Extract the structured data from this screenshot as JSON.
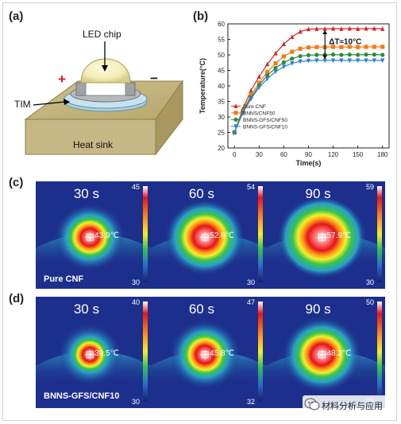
{
  "panel_a": {
    "label": "(a)",
    "led_chip": "LED chip",
    "plus": "+",
    "minus": "−",
    "tim": "TIM",
    "heat_sink": "Heat sink"
  },
  "panel_b": {
    "label": "(b)",
    "delta_t": "ΔT≈10°C"
  },
  "chart_data": {
    "type": "line",
    "title": "",
    "xlabel": "Time(s)",
    "ylabel": "Temperature(°C)",
    "xlim": [
      -8,
      188
    ],
    "ylim": [
      20,
      60
    ],
    "xticks": [
      "0",
      "30",
      "60",
      "90",
      "120",
      "150",
      "180"
    ],
    "yticks": [
      "20",
      "25",
      "30",
      "35",
      "40",
      "45",
      "50",
      "55",
      "60"
    ],
    "x": [
      0,
      10,
      20,
      30,
      40,
      50,
      60,
      70,
      80,
      90,
      100,
      110,
      120,
      130,
      140,
      150,
      160,
      170,
      180
    ],
    "series": [
      {
        "name": "Pure CNF",
        "color": "#d62728",
        "marker": "triangle-up",
        "values": [
          25,
          32.5,
          38.5,
          43,
          47,
          50.5,
          53.5,
          55.8,
          57.5,
          58.3,
          58.4,
          58.4,
          58.5,
          58.4,
          58.5,
          58.4,
          58.5,
          58.5,
          58.4
        ]
      },
      {
        "name": "BNNS/CNF50",
        "color": "#ef7d1a",
        "marker": "square",
        "values": [
          25,
          31.8,
          37,
          41,
          44.5,
          47.3,
          49.5,
          51,
          52,
          52.4,
          52.5,
          52.5,
          52.6,
          52.5,
          52.6,
          52.5,
          52.6,
          52.6,
          52.6
        ]
      },
      {
        "name": "BNNS-GFS/CNF50",
        "color": "#2e8b3a",
        "marker": "circle",
        "values": [
          25,
          31.5,
          36.3,
          40.2,
          43.4,
          45.8,
          47.6,
          48.8,
          49.6,
          49.9,
          50,
          50,
          50.1,
          50,
          50.1,
          50,
          50.1,
          50.1,
          50
        ]
      },
      {
        "name": "BNNS-GFS/CNF10",
        "color": "#2f7fd1",
        "marker": "triangle-down",
        "values": [
          25,
          31.2,
          35.8,
          39.5,
          42.3,
          44.6,
          46.2,
          47.3,
          47.9,
          48.1,
          48.2,
          48.2,
          48.2,
          48.2,
          48.2,
          48.2,
          48.2,
          48.2,
          48.2
        ]
      }
    ],
    "legend_position": "bottom-left"
  },
  "panel_c": {
    "label": "(c)",
    "sample": "Pure CNF",
    "frames": [
      {
        "time": "30 s",
        "spot": "43.9℃",
        "cb_max": "45",
        "cb_min": "30"
      },
      {
        "time": "60 s",
        "spot": "52.6℃",
        "cb_max": "54",
        "cb_min": "30"
      },
      {
        "time": "90 s",
        "spot": "57.9℃",
        "cb_max": "59",
        "cb_min": "30"
      }
    ]
  },
  "panel_d": {
    "label": "(d)",
    "sample": "BNNS-GFS/CNF10",
    "frames": [
      {
        "time": "30 s",
        "spot": "39.5℃",
        "cb_max": "40",
        "cb_min": "30"
      },
      {
        "time": "60 s",
        "spot": "45.8℃",
        "cb_max": "47",
        "cb_min": "32"
      },
      {
        "time": "90 s",
        "spot": "48.2℃",
        "cb_max": "50",
        "cb_min": "33"
      }
    ]
  },
  "watermark": "材料分析与应用"
}
